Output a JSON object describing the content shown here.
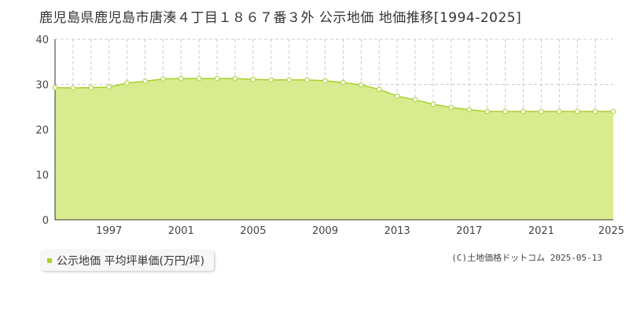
{
  "title": "鹿児島県鹿児島市唐湊４丁目１８６７番３外 公示地価 地価推移[1994-2025]",
  "legend": {
    "label": "公示地価 平均坪単価(万円/坪)"
  },
  "credit": "(C)土地価格ドットコム 2025-05-13",
  "colors": {
    "fill": "#d8ec8f",
    "line": "#a8cf2a",
    "grid": "#cccccc",
    "marker_stroke": "#b5d64a"
  },
  "chart_data": {
    "type": "area",
    "title": "鹿児島県鹿児島市唐湊４丁目１８６７番３外 公示地価 地価推移[1994-2025]",
    "xlabel": "",
    "ylabel": "",
    "ylim": [
      0,
      40
    ],
    "xlim": [
      1994,
      2025
    ],
    "yticks": [
      0,
      10,
      20,
      30,
      40
    ],
    "xticks": [
      1997,
      2001,
      2005,
      2009,
      2013,
      2017,
      2021,
      2025
    ],
    "grid": true,
    "legend_position": "bottom-left",
    "series": [
      {
        "name": "公示地価 平均坪単価(万円/坪)",
        "x": [
          1994,
          1995,
          1996,
          1997,
          1998,
          1999,
          2000,
          2001,
          2002,
          2003,
          2004,
          2005,
          2006,
          2007,
          2008,
          2009,
          2010,
          2011,
          2012,
          2013,
          2014,
          2015,
          2016,
          2017,
          2018,
          2019,
          2020,
          2021,
          2022,
          2023,
          2024,
          2025
        ],
        "y": [
          29.3,
          29.2,
          29.3,
          29.4,
          30.3,
          30.7,
          31.2,
          31.3,
          31.3,
          31.3,
          31.3,
          31.1,
          31.0,
          31.0,
          31.0,
          30.8,
          30.4,
          29.9,
          28.9,
          27.4,
          26.6,
          25.6,
          24.9,
          24.4,
          24.0,
          24.0,
          24.0,
          24.0,
          24.0,
          24.0,
          24.0,
          24.0
        ]
      }
    ]
  }
}
